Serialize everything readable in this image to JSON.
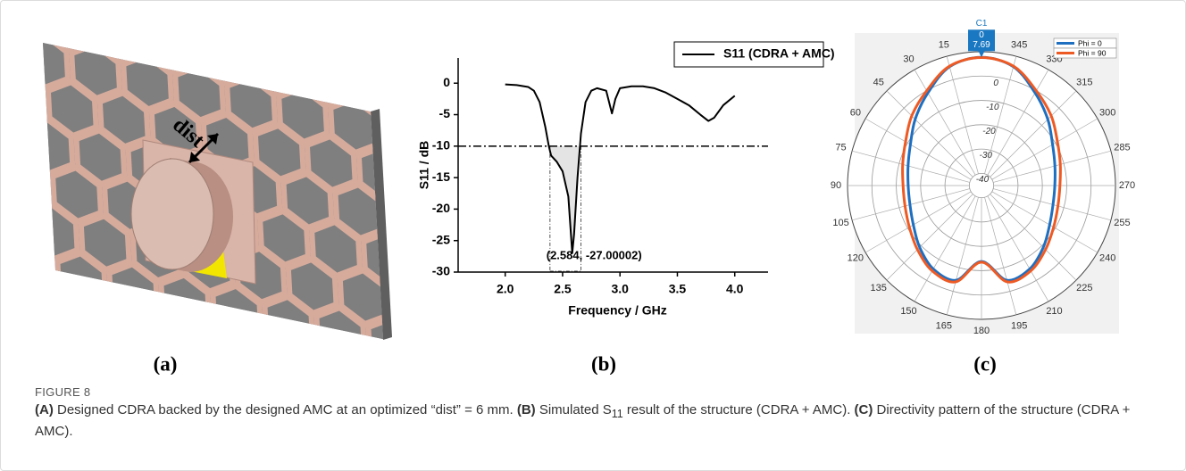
{
  "panels": {
    "a": {
      "label": "(a)",
      "annotation": "dist"
    },
    "b": {
      "label": "(b)"
    },
    "c": {
      "label": "(c)"
    }
  },
  "chart_data": [
    {
      "type": "line",
      "x_label": "Frequency / GHz",
      "y_label": "S11 / dB",
      "x": [
        2.0,
        2.1,
        2.2,
        2.25,
        2.3,
        2.35,
        2.38,
        2.4,
        2.45,
        2.5,
        2.55,
        2.584,
        2.6,
        2.63,
        2.66,
        2.7,
        2.75,
        2.8,
        2.88,
        2.93,
        2.96,
        3.0,
        3.1,
        3.2,
        3.3,
        3.4,
        3.5,
        3.6,
        3.7,
        3.77,
        3.82,
        3.9,
        4.0
      ],
      "series": [
        {
          "name": "S11 (CDRA + AMC)",
          "color": "#000000",
          "values": [
            -0.2,
            -0.3,
            -0.6,
            -1.2,
            -3,
            -7,
            -10,
            -11.5,
            -12.5,
            -14,
            -18,
            -27,
            -24,
            -15,
            -8,
            -3,
            -1.2,
            -0.8,
            -1.2,
            -4.8,
            -2.5,
            -0.8,
            -0.5,
            -0.5,
            -0.8,
            -1.5,
            -2.5,
            -3.5,
            -5,
            -6,
            -5.5,
            -3.5,
            -2
          ]
        }
      ],
      "threshold": -10,
      "shade": [
        2.39,
        2.66
      ],
      "annotation": {
        "text": "(2.584, -27.00002)",
        "x": 2.584,
        "y": -27
      },
      "xlim": [
        1.59,
        4.29
      ],
      "ylim": [
        -30,
        4
      ],
      "xticks": [
        {
          "value": 2,
          "label": "2.0"
        },
        {
          "value": 2.5,
          "label": "2.5"
        },
        {
          "value": 3,
          "label": "3.0"
        },
        {
          "value": 3.5,
          "label": "3.5"
        },
        {
          "value": 4,
          "label": "4.0"
        }
      ],
      "yticks": [
        0,
        -5,
        -10,
        -15,
        -20,
        -25,
        -30
      ],
      "legend": "upper right"
    },
    {
      "type": "polar",
      "theta": [
        0,
        15,
        30,
        45,
        60,
        75,
        90,
        105,
        120,
        135,
        150,
        165,
        180,
        195,
        210,
        225,
        240,
        255,
        270,
        285,
        300,
        315,
        330,
        345
      ],
      "series": [
        {
          "name": "Phi = 0",
          "color": "#1f6fc0",
          "values": [
            7.69,
            5.6,
            -1,
            -6.5,
            -11.3,
            -13.8,
            -14.9,
            -14.6,
            -12.7,
            -9.1,
            -5.4,
            -4.7,
            -13.8,
            -4.7,
            -5.4,
            -9.1,
            -12.7,
            -14.6,
            -14.9,
            -13.8,
            -11.3,
            -6.5,
            -1,
            5.6
          ]
        },
        {
          "name": "Phi = 90",
          "color": "#ee5a24",
          "values": [
            7.6,
            5.8,
            0,
            -4.5,
            -9,
            -11.5,
            -12.8,
            -12.5,
            -10.8,
            -7.8,
            -4.5,
            -4,
            -13.5,
            -4,
            -4.5,
            -7.8,
            -10.8,
            -12.5,
            -12.8,
            -11.5,
            -9,
            -4.5,
            0,
            5.8
          ]
        }
      ],
      "rlim": [
        -45,
        10
      ],
      "rticks": [
        -40,
        -30,
        -20,
        -10,
        0
      ],
      "thetaticks": [
        15,
        30,
        45,
        60,
        75,
        90,
        105,
        120,
        135,
        150,
        165,
        180,
        195,
        210,
        225,
        240,
        255,
        270,
        285,
        300,
        315,
        330,
        345
      ],
      "marker": {
        "label": "C1",
        "angle": 0,
        "value": 7.69
      },
      "legend": "upper right"
    }
  ],
  "caption": {
    "figure": "FIGURE 8",
    "parts": [
      "(A)",
      " Designed CDRA backed by the designed AMC at an optimized “dist” = 6 mm. ",
      "(B)",
      " Simulated S",
      "11",
      " result of the structure (CDRA + AMC). ",
      "(C)",
      " Directivity pattern of the structure (CDRA + AMC)."
    ]
  }
}
